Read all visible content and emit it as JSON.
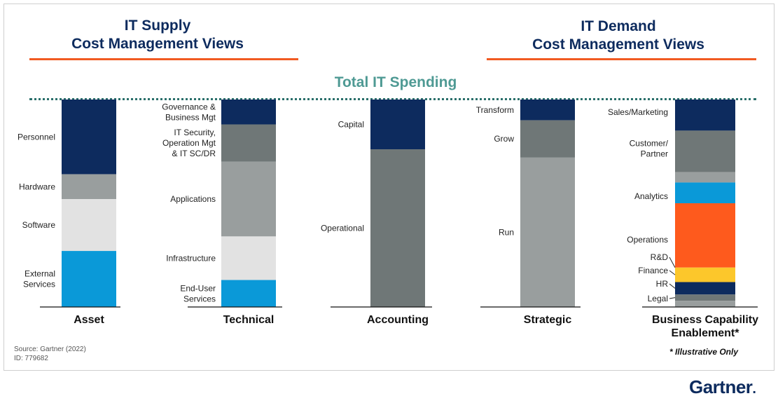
{
  "headers": {
    "supply_line1": "IT Supply",
    "supply_line2": "Cost Management Views",
    "demand_line1": "IT Demand",
    "demand_line2": "Cost Management Views",
    "total": "Total IT Spending"
  },
  "colors": {
    "navy": "#0d2b5e",
    "dark_gray": "#6f7777",
    "mid_gray": "#999e9e",
    "light_gray": "#e2e2e2",
    "blue": "#0a99d8",
    "orange": "#fe5a1d",
    "yellow": "#fcc72b",
    "accent_rule": "#f15a22",
    "teal": "#4f9a94"
  },
  "chart_data": {
    "type": "stacked_bar",
    "note": "Segment values are approximate share of total IT spending (%).",
    "bars": [
      {
        "category": "Asset",
        "category_lines": [
          "Asset"
        ],
        "segments": [
          {
            "label_lines": [
              "Personnel"
            ],
            "value": 36,
            "color": "#0d2b5e"
          },
          {
            "label_lines": [
              "Hardware"
            ],
            "value": 12,
            "color": "#999e9e"
          },
          {
            "label_lines": [
              "Software"
            ],
            "value": 25,
            "color": "#e2e2e2"
          },
          {
            "label_lines": [
              "External",
              "Services"
            ],
            "value": 27,
            "color": "#0a99d8"
          }
        ]
      },
      {
        "category": "Technical",
        "category_lines": [
          "Technical"
        ],
        "segments": [
          {
            "label_lines": [
              "Governance &",
              "Business Mgt"
            ],
            "value": 12,
            "color": "#0d2b5e"
          },
          {
            "label_lines": [
              "IT Security,",
              "Operation Mgt",
              "& IT SC/DR"
            ],
            "value": 18,
            "color": "#6f7777"
          },
          {
            "label_lines": [
              "Applications"
            ],
            "value": 36,
            "color": "#999e9e"
          },
          {
            "label_lines": [
              "Infrastructure"
            ],
            "value": 21,
            "color": "#e2e2e2"
          },
          {
            "label_lines": [
              "End-User",
              "Services"
            ],
            "value": 13,
            "color": "#0a99d8"
          }
        ]
      },
      {
        "category": "Accounting",
        "category_lines": [
          "Accounting"
        ],
        "segments": [
          {
            "label_lines": [
              "Capital"
            ],
            "value": 24,
            "color": "#0d2b5e"
          },
          {
            "label_lines": [
              "Operational"
            ],
            "value": 76,
            "color": "#6f7777"
          }
        ]
      },
      {
        "category": "Strategic",
        "category_lines": [
          "Strategic"
        ],
        "segments": [
          {
            "label_lines": [
              "Transform"
            ],
            "value": 10,
            "color": "#0d2b5e"
          },
          {
            "label_lines": [
              "Grow"
            ],
            "value": 18,
            "color": "#6f7777"
          },
          {
            "label_lines": [
              "Run"
            ],
            "value": 72,
            "color": "#999e9e"
          }
        ]
      },
      {
        "category": "Business Capability Enablement*",
        "category_lines": [
          "Business Capability",
          "Enablement*"
        ],
        "segments": [
          {
            "label_lines": [
              "Sales/Marketing"
            ],
            "value": 15,
            "color": "#0d2b5e"
          },
          {
            "label_lines": [
              "Customer/",
              "Partner"
            ],
            "value": 20,
            "color": "#6f7777"
          },
          {
            "label_lines": [],
            "value": 5,
            "color": "#999e9e"
          },
          {
            "label_lines": [
              "Analytics"
            ],
            "value": 10,
            "color": "#0a99d8"
          },
          {
            "label_lines": [
              "Operations"
            ],
            "value": 31,
            "color": "#fe5a1d"
          },
          {
            "label_lines": [
              "R&D"
            ],
            "value": 0,
            "color": "#fe5a1d"
          },
          {
            "label_lines": [
              "Finance"
            ],
            "value": 7,
            "color": "#fcc72b"
          },
          {
            "label_lines": [
              "HR"
            ],
            "value": 6,
            "color": "#0d2b5e"
          },
          {
            "label_lines": [
              "Legal"
            ],
            "value": 3,
            "color": "#6f7777"
          },
          {
            "label_lines": [],
            "value": 3,
            "color": "#999e9e"
          }
        ]
      }
    ]
  },
  "footer": {
    "source": "Source: Gartner (2022)",
    "id": "ID: 779682",
    "note": "* Illustrative Only",
    "logo": "Gartner",
    "logo_dot": "."
  }
}
